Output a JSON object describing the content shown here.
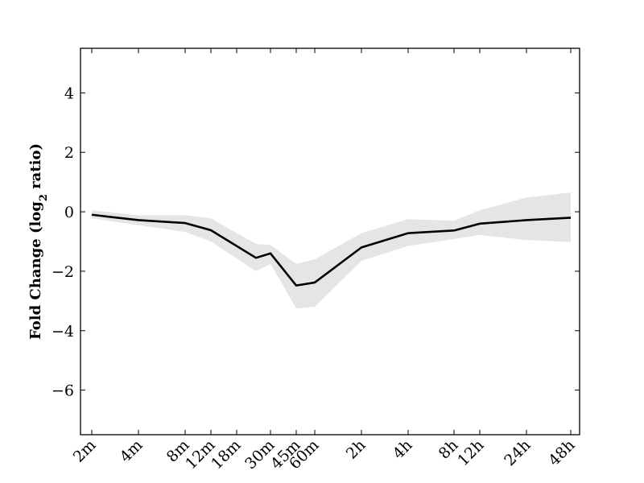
{
  "chart_data": {
    "type": "line",
    "title": "",
    "xlabel": "",
    "ylabel_main": "Fold Change (log",
    "ylabel_sub": "2",
    "ylabel_tail": " ratio)",
    "x": [
      "2m",
      "4m",
      "8m",
      "12m",
      "18m",
      "30m",
      "45m",
      "60m",
      "2h",
      "4h",
      "8h",
      "12h",
      "24h",
      "48h"
    ],
    "ylim": [
      -7.5,
      5.5
    ],
    "yticks": [
      -6,
      -4,
      -2,
      0,
      2,
      4
    ],
    "ytick_labels": [
      "−6",
      "−4",
      "−2",
      "0",
      "2",
      "4"
    ],
    "grid": false,
    "series": [
      {
        "points": [
          {
            "x": "2m",
            "y": -0.1
          },
          {
            "x": "4m",
            "y": -0.28
          },
          {
            "x": "8m",
            "y": -0.38
          },
          {
            "x": "12m",
            "y": -0.62
          },
          {
            "x": "18m–30m",
            "y": -1.55
          },
          {
            "x": "30m",
            "y": -1.4
          },
          {
            "x": "45m",
            "y": -2.48
          },
          {
            "x": "60m",
            "y": -2.38
          },
          {
            "x": "2h",
            "y": -1.2
          },
          {
            "x": "4h",
            "y": -0.72
          },
          {
            "x": "8h",
            "y": -0.63
          },
          {
            "x": "12h",
            "y": -0.4
          },
          {
            "x": "24h",
            "y": -0.28
          },
          {
            "x": "48h",
            "y": -0.2
          }
        ],
        "color": "#000000"
      }
    ],
    "band": {
      "color": "#e5e5e5",
      "points": [
        {
          "x": "2m",
          "upper": 0.05,
          "lower": -0.22
        },
        {
          "x": "4m",
          "upper": -0.12,
          "lower": -0.45
        },
        {
          "x": "8m",
          "upper": -0.12,
          "lower": -0.68
        },
        {
          "x": "12m",
          "upper": -0.22,
          "lower": -1.0
        },
        {
          "x": "18m–30m",
          "upper": -1.08,
          "lower": -2.0
        },
        {
          "x": "30m",
          "upper": -1.12,
          "lower": -1.75
        },
        {
          "x": "45m",
          "upper": -1.75,
          "lower": -3.25
        },
        {
          "x": "60m",
          "upper": -1.6,
          "lower": -3.2
        },
        {
          "x": "2h",
          "upper": -0.72,
          "lower": -1.65
        },
        {
          "x": "4h",
          "upper": -0.25,
          "lower": -1.15
        },
        {
          "x": "8h",
          "upper": -0.3,
          "lower": -0.92
        },
        {
          "x": "12h",
          "upper": 0.05,
          "lower": -0.78
        },
        {
          "x": "24h",
          "upper": 0.48,
          "lower": -0.95
        },
        {
          "x": "48h",
          "upper": 0.65,
          "lower": -1.02
        }
      ]
    }
  }
}
